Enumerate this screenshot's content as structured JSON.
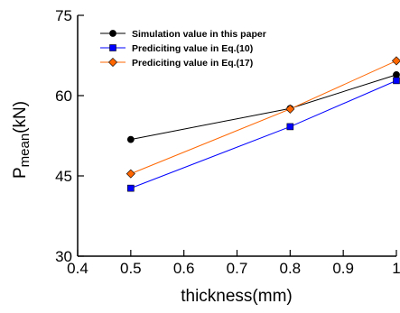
{
  "chart_data": {
    "type": "line",
    "xlabel": "thickness(mm)",
    "ylabel": {
      "main": "P",
      "sub": "mean",
      "unit": "(kN)"
    },
    "xlim": [
      0.4,
      1.0
    ],
    "ylim": [
      30,
      75
    ],
    "xticks": [
      "0.4",
      "0.5",
      "0.6",
      "0.7",
      "0.8",
      "0.9",
      "1"
    ],
    "yticks": [
      "30",
      "45",
      "60",
      "75"
    ],
    "grid": false,
    "legend_position": "top-left",
    "series": [
      {
        "name": "Simulation value in this paper",
        "color": "#000000",
        "marker": "circle",
        "x": [
          0.5,
          0.8,
          1.0
        ],
        "y": [
          51.8,
          57.6,
          63.9
        ]
      },
      {
        "name": "Prediciting value in Eq.(10)",
        "color": "#0000ff",
        "marker": "square",
        "x": [
          0.5,
          0.8,
          1.0
        ],
        "y": [
          42.7,
          54.2,
          62.8
        ]
      },
      {
        "name": "Prediciting value in Eq.(17)",
        "color": "#ff6600",
        "marker": "diamond",
        "x": [
          0.5,
          0.8,
          1.0
        ],
        "y": [
          45.4,
          57.5,
          66.5
        ]
      }
    ]
  }
}
